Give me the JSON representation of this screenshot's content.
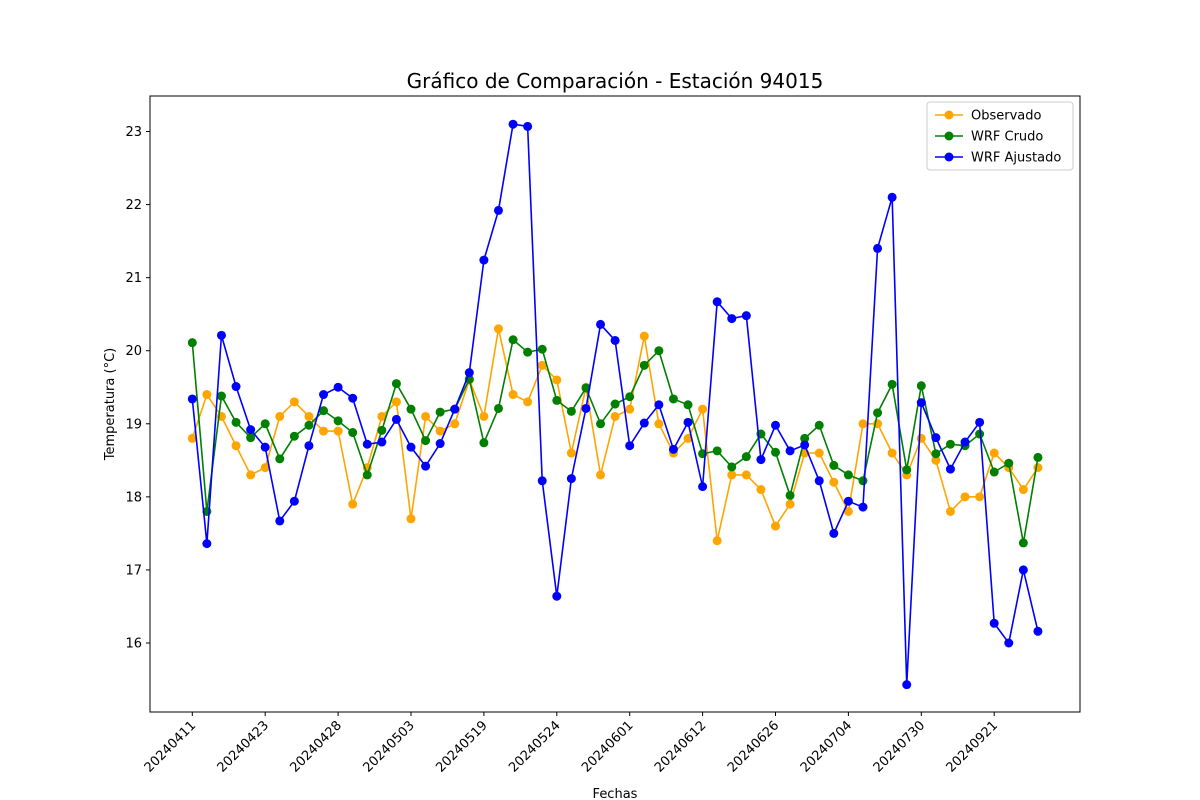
{
  "chart_data": {
    "type": "line",
    "title": "Gráfico de Comparación - Estación 94015",
    "xlabel": "Fechas",
    "ylabel": "Temperatura (°C)",
    "ylim": [
      15.0,
      23.5
    ],
    "yticks": [
      16,
      17,
      18,
      19,
      20,
      21,
      22,
      23
    ],
    "n_points": 59,
    "x_tick_labels": [
      {
        "index": 0,
        "label": "20240411"
      },
      {
        "index": 5,
        "label": "20240423"
      },
      {
        "index": 10,
        "label": "20240428"
      },
      {
        "index": 15,
        "label": "20240503"
      },
      {
        "index": 20,
        "label": "20240519"
      },
      {
        "index": 25,
        "label": "20240524"
      },
      {
        "index": 30,
        "label": "20240601"
      },
      {
        "index": 35,
        "label": "20240612"
      },
      {
        "index": 40,
        "label": "20240626"
      },
      {
        "index": 45,
        "label": "20240704"
      },
      {
        "index": 50,
        "label": "20240730"
      },
      {
        "index": 55,
        "label": "20240921"
      }
    ],
    "legend_position": "top-right",
    "grid": false,
    "series": [
      {
        "name": "Observado",
        "color": "#ffa500",
        "values": [
          18.8,
          19.4,
          19.1,
          18.7,
          18.3,
          18.4,
          19.1,
          19.3,
          19.1,
          18.9,
          18.9,
          17.9,
          18.4,
          19.1,
          19.3,
          17.7,
          19.1,
          18.9,
          19.0,
          19.6,
          19.1,
          20.3,
          19.4,
          19.3,
          19.8,
          19.6,
          18.6,
          19.5,
          18.3,
          19.1,
          19.2,
          20.2,
          19.0,
          18.6,
          18.8,
          19.2,
          17.4,
          18.3,
          18.3,
          18.1,
          17.6,
          17.9,
          18.6,
          18.6,
          18.2,
          17.8,
          19.0,
          19.0,
          18.6,
          18.3,
          18.8,
          18.5,
          17.8,
          18.0,
          18.0,
          18.6,
          18.4,
          18.1,
          18.4
        ]
      },
      {
        "name": "WRF Crudo",
        "color": "#008000",
        "values": [
          20.11,
          17.8,
          19.38,
          19.02,
          18.81,
          19.0,
          18.52,
          18.83,
          18.98,
          19.18,
          19.04,
          18.88,
          18.3,
          18.91,
          19.55,
          19.2,
          18.77,
          19.16,
          19.2,
          19.61,
          18.74,
          19.21,
          20.15,
          19.98,
          20.02,
          19.32,
          19.17,
          19.49,
          19.0,
          19.27,
          19.37,
          19.8,
          20.0,
          19.34,
          19.26,
          18.59,
          18.63,
          18.41,
          18.55,
          18.86,
          18.61,
          18.02,
          18.8,
          18.98,
          18.43,
          18.3,
          18.22,
          19.15,
          19.54,
          18.37,
          19.52,
          18.59,
          18.72,
          18.7,
          18.86,
          18.34,
          18.46,
          17.37,
          18.54
        ]
      },
      {
        "name": "WRF Ajustado",
        "color": "#0000ff",
        "values": [
          19.34,
          17.36,
          20.21,
          19.51,
          18.92,
          18.68,
          17.67,
          17.94,
          18.7,
          19.4,
          19.5,
          19.35,
          18.72,
          18.75,
          19.06,
          18.68,
          18.42,
          18.73,
          19.2,
          19.7,
          21.24,
          21.92,
          23.1,
          23.07,
          18.22,
          16.64,
          18.25,
          19.21,
          20.36,
          20.14,
          18.7,
          19.01,
          19.26,
          18.65,
          19.02,
          18.14,
          20.67,
          20.44,
          20.48,
          18.51,
          18.98,
          18.63,
          18.71,
          18.22,
          17.5,
          17.94,
          17.86,
          21.4,
          22.1,
          15.43,
          19.29,
          18.81,
          18.38,
          18.75,
          19.02,
          16.27,
          16.0,
          17.0,
          16.16
        ]
      }
    ]
  }
}
